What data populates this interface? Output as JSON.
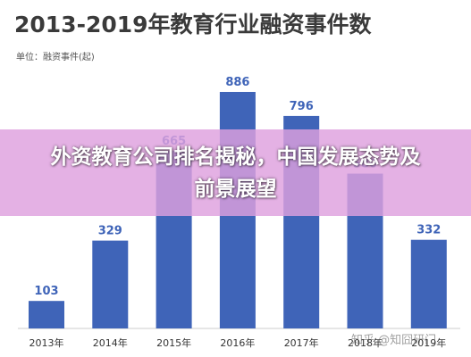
{
  "title": "2013-2019年教育行业融资事件数",
  "unit_label": "单位：融资事件(起)",
  "banner": "外资教育公司排名揭秘，中国发展态势及前景展望",
  "watermark": "知乎 @知囧研门",
  "colors": {
    "bar": "#3f64b8",
    "value_label": "#3f64b8",
    "banner": "#dea0de"
  },
  "chart_data": {
    "type": "bar",
    "title": "2013-2019年教育行业融资事件数",
    "ylabel": "单位：融资事件(起)",
    "categories": [
      "2013年",
      "2014年",
      "2015年",
      "2016年",
      "2017年",
      "2018年",
      "2019年"
    ],
    "values": [
      103,
      329,
      665,
      886,
      796,
      580,
      332
    ],
    "grid": false,
    "legend": "none"
  }
}
